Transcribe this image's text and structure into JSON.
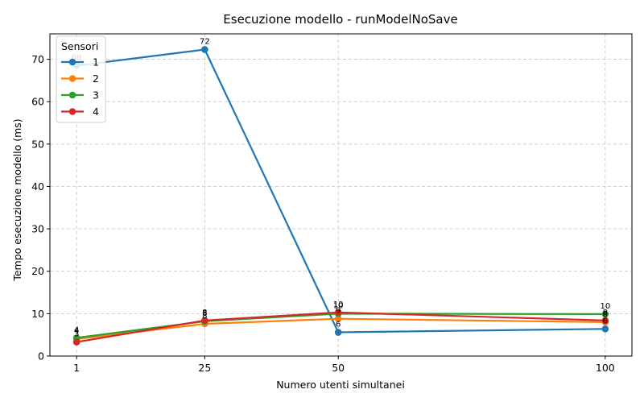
{
  "chart_data": {
    "type": "line",
    "title": "Esecuzione modello - runModelNoSave",
    "xlabel": "Numero utenti simultanei",
    "ylabel": "Tempo esecuzione modello (ms)",
    "x": [
      1,
      25,
      50,
      100
    ],
    "x_ticks": [
      "1",
      "25",
      "50",
      "100"
    ],
    "y_ticks": [
      "0",
      "10",
      "20",
      "30",
      "40",
      "50",
      "60",
      "70"
    ],
    "xlim": [
      -4,
      105
    ],
    "ylim": [
      0,
      76
    ],
    "grid": true,
    "legend": {
      "title": "Sensori",
      "placement": "top-left"
    },
    "series": [
      {
        "name": "1",
        "color": "#1f77b4",
        "values": [
          68.5,
          72.3,
          5.6,
          6.4
        ],
        "labels": [
          "68",
          "72",
          "6",
          "6"
        ]
      },
      {
        "name": "2",
        "color": "#ff7f0e",
        "values": [
          4.0,
          7.6,
          8.8,
          8.0
        ],
        "labels": [
          "4",
          "8",
          "9",
          "8"
        ]
      },
      {
        "name": "3",
        "color": "#2ca02c",
        "values": [
          4.3,
          8.2,
          10.0,
          9.9
        ],
        "labels": [
          "4",
          "8",
          "10",
          "10"
        ]
      },
      {
        "name": "4",
        "color": "#d62728",
        "values": [
          3.3,
          8.4,
          10.3,
          8.4
        ],
        "labels": [
          "3",
          "8",
          "10",
          "8"
        ]
      }
    ]
  }
}
